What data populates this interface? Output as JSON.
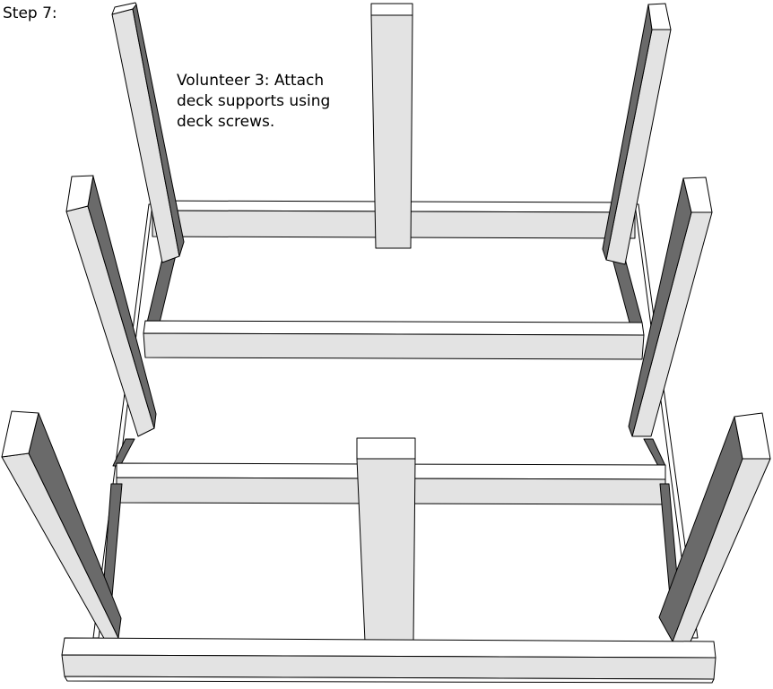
{
  "step_label": "Step 7:",
  "instruction_lines": [
    "Volunteer 3: Attach",
    "deck supports using",
    "deck screws."
  ],
  "colors": {
    "board_face": "#e3e3e3",
    "board_shadow": "#6a6a6a",
    "board_top": "#ffffff",
    "outline": "#000000"
  }
}
